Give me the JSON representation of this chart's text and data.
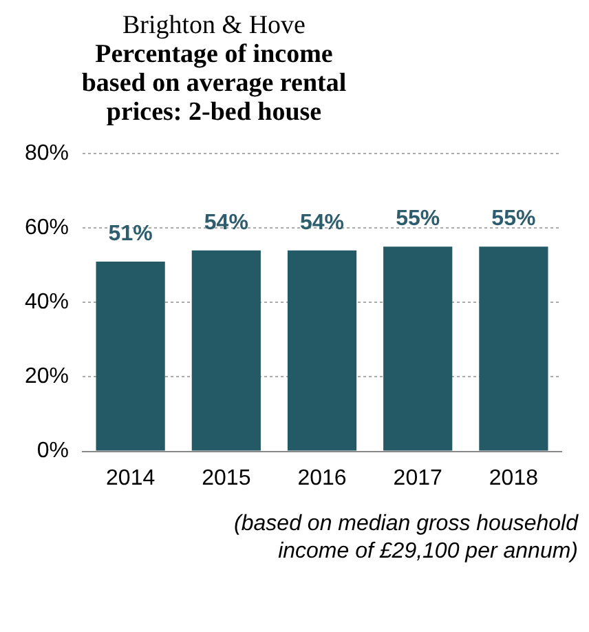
{
  "chart_data": {
    "type": "bar",
    "subtitle": "Brighton & Hove",
    "title": "Percentage of income based on average rental prices: 2-bed house",
    "categories": [
      "2014",
      "2015",
      "2016",
      "2017",
      "2018"
    ],
    "values": [
      51,
      54,
      54,
      55,
      55
    ],
    "value_labels": [
      "51%",
      "54%",
      "54%",
      "55%",
      "55%"
    ],
    "color": "#235a66",
    "ylim": [
      0,
      80
    ],
    "yticks": [
      {
        "value": 0,
        "label": "0%"
      },
      {
        "value": 20,
        "label": "20%"
      },
      {
        "value": 40,
        "label": "40%"
      },
      {
        "value": 60,
        "label": "60%"
      },
      {
        "value": 80,
        "label": "80%"
      }
    ],
    "grid": "y",
    "annotations": [
      "(based on median gross household income of £29,100 per annum)"
    ]
  }
}
